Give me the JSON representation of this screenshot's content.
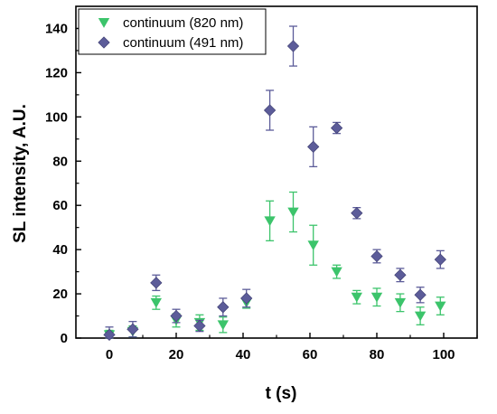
{
  "chart_data": {
    "type": "scatter",
    "title": "",
    "xlabel": "t (s)",
    "ylabel": "SL intensity, A.U.",
    "xlim": [
      -10,
      110
    ],
    "ylim": [
      0,
      150
    ],
    "xticks": [
      0,
      20,
      40,
      60,
      80,
      100
    ],
    "yticks": [
      0,
      20,
      40,
      60,
      80,
      100,
      120,
      140
    ],
    "grid": false,
    "legend_position": "top-left",
    "series": [
      {
        "name": "continuum (820 nm)",
        "marker": "triangle-down",
        "color": "#3cc46b",
        "x": [
          0,
          7,
          14,
          20,
          27,
          34,
          41,
          48,
          55,
          61,
          68,
          74,
          80,
          87,
          93,
          99
        ],
        "y": [
          1.5,
          3,
          16,
          8,
          7,
          6,
          16,
          53,
          57,
          42,
          30,
          18.5,
          18.5,
          16,
          10,
          14.5
        ],
        "err": [
          2,
          2.5,
          3,
          3,
          3.5,
          3.5,
          2.5,
          9,
          9,
          9,
          3,
          3,
          4,
          4,
          4,
          4
        ]
      },
      {
        "name": "continuum (491 nm)",
        "marker": "diamond",
        "color": "#5c5c99",
        "x": [
          0,
          7,
          14,
          20,
          27,
          34,
          41,
          48,
          55,
          61,
          68,
          74,
          80,
          87,
          93,
          99
        ],
        "y": [
          1.5,
          4,
          25,
          10,
          5.5,
          14,
          18,
          103,
          132,
          86.5,
          95,
          56.5,
          37,
          28.5,
          19.5,
          35.5
        ],
        "err": [
          3.5,
          3.5,
          3.5,
          3,
          2.5,
          4,
          4,
          9,
          9,
          9,
          2.5,
          2.5,
          3,
          3,
          3.5,
          4
        ]
      }
    ]
  }
}
